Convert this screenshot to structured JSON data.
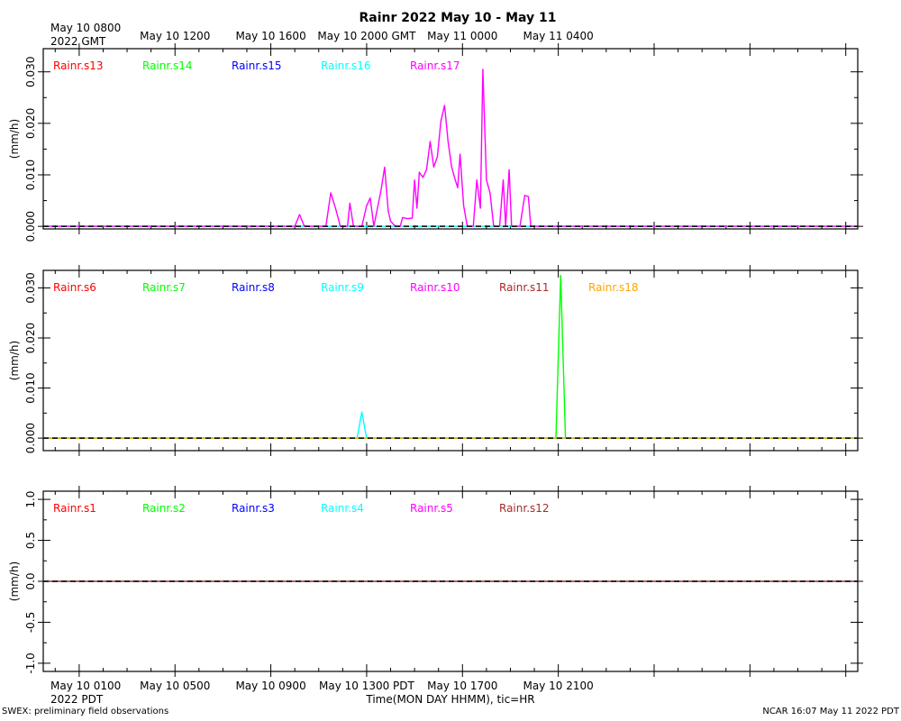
{
  "title": "Rainr 2022 May 10 - May 11",
  "top_axis": {
    "first_label": [
      "May 10 0800",
      "2022 GMT"
    ],
    "labels": [
      "May 10 1200",
      "May 10 1600",
      "May 10 2000 GMT",
      "May 11 0000",
      "May 11 0400"
    ]
  },
  "bottom_axis": {
    "first_label": [
      "May 10 0100",
      "2022 PDT"
    ],
    "labels": [
      "May 10 0500",
      "May 10 0900",
      "May 10 1300 PDT",
      "May 10 1700",
      "May 10 2100"
    ],
    "xlabel": "Time(MON DAY HHMM), tic=HR"
  },
  "footer": {
    "left": "SWEX: preliminary field observations",
    "right": "NCAR 16:07 May 11 2022 PDT"
  },
  "chart_data": [
    {
      "type": "line",
      "ylabel": "(mm/h)",
      "ylim": [
        -0.0005,
        0.0345
      ],
      "yticks": [
        "0.000",
        "0.010",
        "0.020",
        "0.030"
      ],
      "ytick_values": [
        0,
        0.01,
        0.02,
        0.03
      ],
      "x_unit": "hours since May 10 0100 PDT",
      "xlim": [
        -1.5,
        32.5
      ],
      "legend": [
        {
          "name": "Rainr.s13",
          "color": "#ff0000"
        },
        {
          "name": "Rainr.s14",
          "color": "#00ff00"
        },
        {
          "name": "Rainr.s15",
          "color": "#0000ff"
        },
        {
          "name": "Rainr.s16",
          "color": "#00ffff"
        },
        {
          "name": "Rainr.s17",
          "color": "#ff00ff"
        }
      ],
      "series": [
        {
          "name": "Rainr.s16",
          "color": "#00ffff",
          "points": [
            [
              -1.5,
              0
            ],
            [
              32.5,
              0
            ]
          ]
        },
        {
          "name": "Rainr.s17",
          "color": "#ff00ff",
          "points": [
            [
              -1.5,
              0
            ],
            [
              9.0,
              0
            ],
            [
              9.2,
              0.0023
            ],
            [
              9.4,
              0
            ],
            [
              10.3,
              0
            ],
            [
              10.5,
              0.0065
            ],
            [
              10.7,
              0.0035
            ],
            [
              10.9,
              0
            ],
            [
              11.2,
              0
            ],
            [
              11.3,
              0.0045
            ],
            [
              11.45,
              0
            ],
            [
              11.8,
              0
            ],
            [
              12.0,
              0.004
            ],
            [
              12.15,
              0.0055
            ],
            [
              12.3,
              0
            ],
            [
              12.6,
              0.007
            ],
            [
              12.75,
              0.0115
            ],
            [
              12.9,
              0.003
            ],
            [
              13.0,
              0.001
            ],
            [
              13.2,
              0
            ],
            [
              13.4,
              0
            ],
            [
              13.5,
              0.0017
            ],
            [
              13.7,
              0.0015
            ],
            [
              13.9,
              0.0016
            ],
            [
              14.0,
              0.009
            ],
            [
              14.1,
              0.0035
            ],
            [
              14.2,
              0.0105
            ],
            [
              14.35,
              0.0095
            ],
            [
              14.5,
              0.011
            ],
            [
              14.65,
              0.0165
            ],
            [
              14.8,
              0.0115
            ],
            [
              14.95,
              0.0135
            ],
            [
              15.1,
              0.0205
            ],
            [
              15.25,
              0.0235
            ],
            [
              15.4,
              0.0165
            ],
            [
              15.55,
              0.0115
            ],
            [
              15.7,
              0.009
            ],
            [
              15.8,
              0.0075
            ],
            [
              15.9,
              0.014
            ],
            [
              16.05,
              0.004
            ],
            [
              16.2,
              0
            ],
            [
              16.45,
              0
            ],
            [
              16.6,
              0.009
            ],
            [
              16.75,
              0.0035
            ],
            [
              16.85,
              0.0305
            ],
            [
              17.0,
              0.009
            ],
            [
              17.15,
              0.0065
            ],
            [
              17.3,
              0
            ],
            [
              17.55,
              0
            ],
            [
              17.7,
              0.009
            ],
            [
              17.8,
              0
            ],
            [
              17.95,
              0.011
            ],
            [
              18.05,
              0
            ],
            [
              18.4,
              0
            ],
            [
              18.6,
              0.006
            ],
            [
              18.75,
              0.0058
            ],
            [
              18.85,
              0
            ],
            [
              32.5,
              0
            ]
          ]
        }
      ]
    },
    {
      "type": "line",
      "ylabel": "(mm/h)",
      "ylim": [
        -0.0025,
        0.0335
      ],
      "yticks": [
        "0.000",
        "0.010",
        "0.020",
        "0.030"
      ],
      "ytick_values": [
        0,
        0.01,
        0.02,
        0.03
      ],
      "x_unit": "hours since May 10 0100 PDT",
      "xlim": [
        -1.5,
        32.5
      ],
      "legend": [
        {
          "name": "Rainr.s6",
          "color": "#ff0000"
        },
        {
          "name": "Rainr.s7",
          "color": "#00ff00"
        },
        {
          "name": "Rainr.s8",
          "color": "#0000ff"
        },
        {
          "name": "Rainr.s9",
          "color": "#00ffff"
        },
        {
          "name": "Rainr.s10",
          "color": "#ff00ff"
        },
        {
          "name": "Rainr.s11",
          "color": "#a52a2a"
        },
        {
          "name": "Rainr.s18",
          "color": "#ffa500"
        }
      ],
      "series": [
        {
          "name": "Rainr.s9",
          "color": "#00ffff",
          "points": [
            [
              -1.5,
              0
            ],
            [
              11.6,
              0
            ],
            [
              11.8,
              0.0052
            ],
            [
              12.0,
              0
            ],
            [
              32.5,
              0
            ]
          ]
        },
        {
          "name": "Rainr.s7",
          "color": "#00ff00",
          "points": [
            [
              -1.5,
              0
            ],
            [
              19.9,
              0
            ],
            [
              20.1,
              0.0325
            ],
            [
              20.3,
              0
            ],
            [
              32.5,
              0
            ]
          ]
        },
        {
          "name": "Rainr.s18",
          "color": "#ffa500",
          "points": [
            [
              -1.5,
              0
            ],
            [
              32.5,
              0
            ]
          ]
        }
      ]
    },
    {
      "type": "line",
      "ylabel": "(mm/h)",
      "ylim": [
        -1.1,
        1.1
      ],
      "yticks": [
        "-1.0",
        "-0.5",
        "0.0",
        "0.5",
        "1.0"
      ],
      "ytick_values": [
        -1.0,
        -0.5,
        0.0,
        0.5,
        1.0
      ],
      "x_unit": "hours since May 10 0100 PDT",
      "xlim": [
        -1.5,
        32.5
      ],
      "legend": [
        {
          "name": "Rainr.s1",
          "color": "#ff0000"
        },
        {
          "name": "Rainr.s2",
          "color": "#00ff00"
        },
        {
          "name": "Rainr.s3",
          "color": "#0000ff"
        },
        {
          "name": "Rainr.s4",
          "color": "#00ffff"
        },
        {
          "name": "Rainr.s5",
          "color": "#ff00ff"
        },
        {
          "name": "Rainr.s12",
          "color": "#a52a2a"
        }
      ],
      "series": [
        {
          "name": "Rainr.s12",
          "color": "#a52a2a",
          "points": [
            [
              -1.5,
              0
            ],
            [
              32.5,
              0
            ]
          ]
        }
      ]
    }
  ]
}
